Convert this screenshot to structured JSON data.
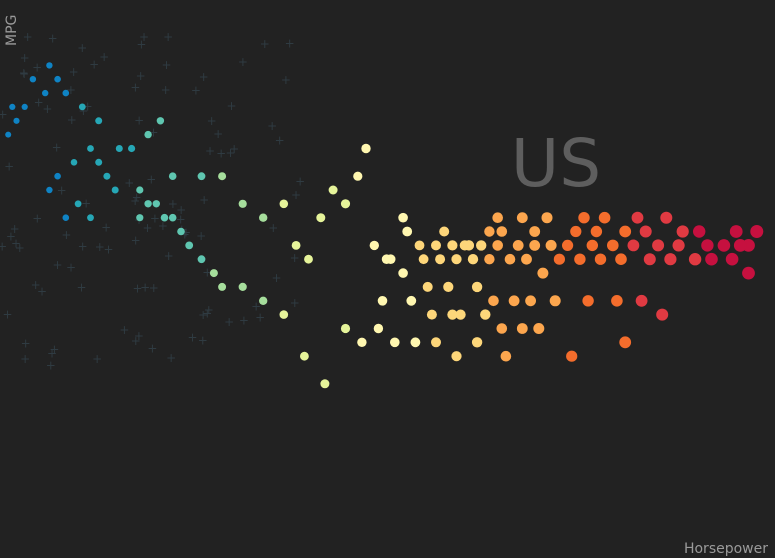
{
  "chart_data": {
    "type": "scatter",
    "title": "",
    "xlabel": "Horsepower",
    "ylabel": "MPG",
    "facet_label": "US",
    "xlim": [
      46,
      232
    ],
    "ylim": [
      9,
      48
    ],
    "grid": false,
    "colors": {
      "background": "#222222",
      "axis_text": "#9a9a9a",
      "facet_text": "#5e5e5e",
      "faded_marker": "#3a3a3a",
      "scale": [
        "#0f83c4",
        "#26a7b6",
        "#5fc6b0",
        "#a6de9c",
        "#e6f49a",
        "#fff7b0",
        "#fdd67a",
        "#fca64e",
        "#f46d2c",
        "#e03a42",
        "#c6103f"
      ]
    },
    "series": [
      {
        "name": "US",
        "points": [
          [
            154,
            32
          ],
          [
            159,
            31
          ],
          [
            160,
            31
          ],
          [
            165,
            32
          ],
          [
            167,
            33
          ],
          [
            168,
            32
          ],
          [
            173,
            33
          ],
          [
            176,
            32
          ],
          [
            179,
            33
          ],
          [
            186,
            32
          ],
          [
            188,
            33
          ],
          [
            191,
            32
          ],
          [
            193,
            33
          ],
          [
            198,
            32
          ],
          [
            201,
            33
          ],
          [
            203,
            32
          ],
          [
            208,
            33
          ],
          [
            212,
            32
          ],
          [
            216,
            32
          ],
          [
            225,
            32
          ],
          [
            228,
            31
          ],
          [
            137,
            31
          ],
          [
            145,
            32
          ],
          [
            148,
            31
          ],
          [
            152,
            31
          ],
          [
            156,
            31
          ],
          [
            160,
            31
          ],
          [
            163,
            31
          ],
          [
            167,
            31
          ],
          [
            172,
            31
          ],
          [
            176,
            31
          ],
          [
            180,
            31
          ],
          [
            184,
            31
          ],
          [
            190,
            31
          ],
          [
            195,
            31
          ],
          [
            200,
            31
          ],
          [
            206,
            31
          ],
          [
            211,
            31
          ],
          [
            218,
            31
          ],
          [
            222,
            31
          ],
          [
            226,
            31
          ],
          [
            230,
            32
          ],
          [
            141,
            30
          ],
          [
            149,
            30
          ],
          [
            153,
            30
          ],
          [
            157,
            30
          ],
          [
            161,
            30
          ],
          [
            165,
            30
          ],
          [
            170,
            30
          ],
          [
            174,
            30
          ],
          [
            178,
            29
          ],
          [
            182,
            30
          ],
          [
            187,
            30
          ],
          [
            192,
            30
          ],
          [
            197,
            30
          ],
          [
            204,
            30
          ],
          [
            209,
            30
          ],
          [
            215,
            30
          ],
          [
            219,
            30
          ],
          [
            224,
            30
          ],
          [
            228,
            29
          ],
          [
            144,
            29
          ],
          [
            150,
            28
          ],
          [
            155,
            28
          ],
          [
            162,
            28
          ],
          [
            166,
            27
          ],
          [
            171,
            27
          ],
          [
            175,
            27
          ],
          [
            181,
            27
          ],
          [
            189,
            27
          ],
          [
            196,
            27
          ],
          [
            202,
            27
          ],
          [
            207,
            26
          ],
          [
            139,
            27
          ],
          [
            146,
            27
          ],
          [
            151,
            26
          ],
          [
            156,
            26
          ],
          [
            158,
            26
          ],
          [
            164,
            26
          ],
          [
            168,
            25
          ],
          [
            173,
            25
          ],
          [
            177,
            25
          ],
          [
            130,
            25
          ],
          [
            134,
            24
          ],
          [
            138,
            25
          ],
          [
            142,
            24
          ],
          [
            147,
            24
          ],
          [
            152,
            24
          ],
          [
            157,
            23
          ],
          [
            162,
            24
          ],
          [
            169,
            23
          ],
          [
            185,
            23
          ],
          [
            198,
            24
          ],
          [
            125,
            21
          ],
          [
            120,
            23
          ],
          [
            115,
            26
          ],
          [
            110,
            27
          ],
          [
            105,
            28
          ],
          [
            100,
            28
          ],
          [
            98,
            29
          ],
          [
            95,
            30
          ],
          [
            92,
            31
          ],
          [
            90,
            32
          ],
          [
            88,
            33
          ],
          [
            86,
            33
          ],
          [
            84,
            34
          ],
          [
            82,
            34
          ],
          [
            80,
            33
          ],
          [
            95,
            36
          ],
          [
            88,
            36
          ],
          [
            80,
            35
          ],
          [
            72,
            36
          ],
          [
            68,
            38
          ],
          [
            75,
            38
          ],
          [
            70,
            40
          ],
          [
            66,
            41
          ],
          [
            62,
            42
          ],
          [
            60,
            43
          ],
          [
            58,
            44
          ],
          [
            57,
            42
          ],
          [
            54,
            43
          ],
          [
            52,
            41
          ],
          [
            50,
            40
          ],
          [
            49,
            41
          ],
          [
            48,
            39
          ],
          [
            68,
            33
          ],
          [
            65,
            34
          ],
          [
            62,
            33
          ],
          [
            60,
            36
          ],
          [
            58,
            35
          ],
          [
            64,
            37
          ],
          [
            70,
            37
          ],
          [
            74,
            35
          ],
          [
            78,
            38
          ],
          [
            82,
            39
          ],
          [
            85,
            40
          ],
          [
            100,
            36
          ],
          [
            105,
            34
          ],
          [
            110,
            33
          ],
          [
            115,
            34
          ],
          [
            118,
            31
          ],
          [
            121,
            30
          ],
          [
            124,
            33
          ],
          [
            127,
            35
          ],
          [
            130,
            34
          ],
          [
            133,
            36
          ],
          [
            135,
            38
          ],
          [
            140,
            30
          ],
          [
            144,
            33
          ]
        ]
      }
    ]
  }
}
